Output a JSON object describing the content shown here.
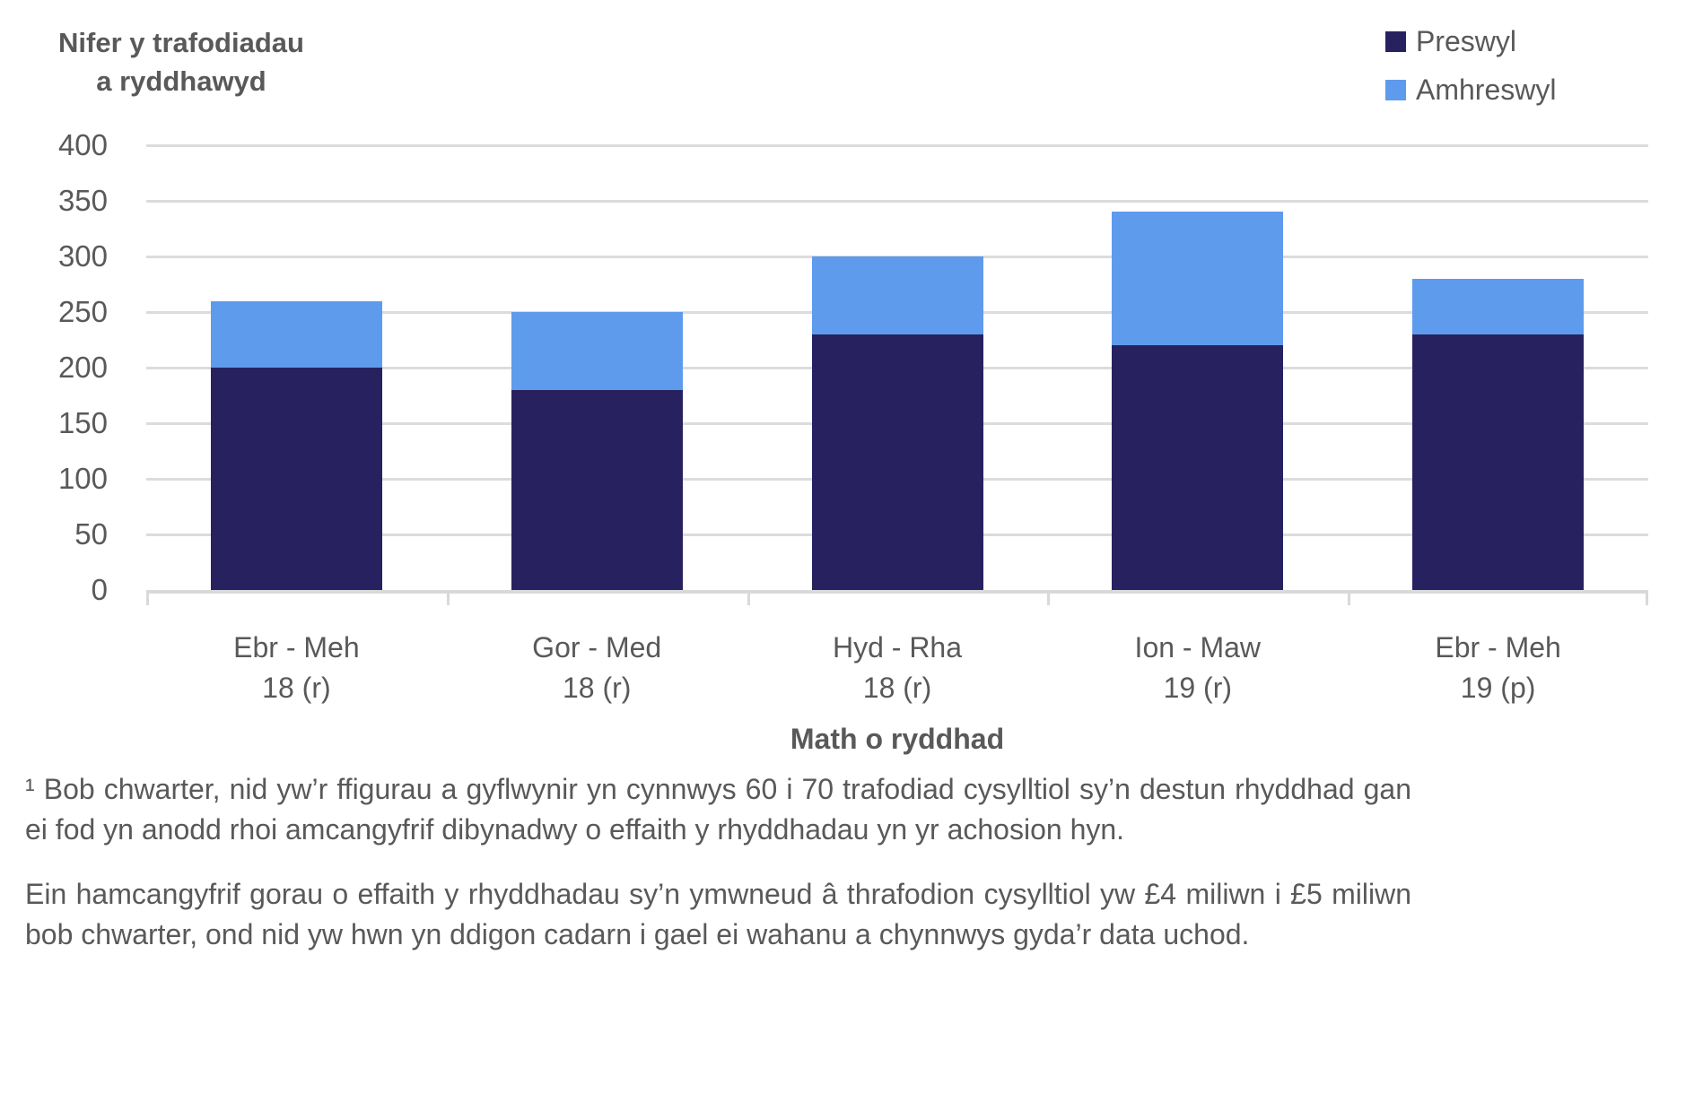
{
  "colors": {
    "preswyl": "#27225F",
    "amhreswyl": "#5E9BEC",
    "gridline": "#DCDCDC",
    "axis": "#D9D9D9",
    "text": "#595959"
  },
  "chart_data": {
    "type": "bar",
    "stacked": true,
    "y_axis_title_lines": [
      "Nifer y trafodiadau",
      "a ryddhawyd"
    ],
    "xlabel": "Math o ryddhad",
    "ylabel": "Nifer y trafodiadau a ryddhawyd",
    "ylim": [
      0,
      400
    ],
    "ytick_step": 50,
    "grid": true,
    "legend_position": "top-right",
    "categories": [
      {
        "line1": "Ebr - Meh",
        "line2": "18 (r)"
      },
      {
        "line1": "Gor - Med",
        "line2": "18 (r)"
      },
      {
        "line1": "Hyd - Rha",
        "line2": "18 (r)"
      },
      {
        "line1": "Ion - Maw",
        "line2": "19 (r)"
      },
      {
        "line1": "Ebr - Meh",
        "line2": "19 (p)"
      }
    ],
    "series": [
      {
        "name": "Preswyl",
        "color": "#27225F",
        "values": [
          200,
          180,
          230,
          220,
          230
        ]
      },
      {
        "name": "Amhreswyl",
        "color": "#5E9BEC",
        "values": [
          60,
          70,
          70,
          120,
          50
        ]
      }
    ]
  },
  "footnotes": [
    "¹ Bob chwarter, nid yw’r ffigurau a gyflwynir yn cynnwys 60 i 70 trafodiad cysylltiol sy’n destun rhyddhad gan ei fod yn anodd rhoi amcangyfrif dibynadwy o effaith y rhyddhadau yn yr achosion hyn.",
    "Ein hamcangyfrif gorau o effaith y rhyddhadau sy’n ymwneud â thrafodion cysylltiol yw £4 miliwn i £5 miliwn bob chwarter, ond nid yw hwn yn ddigon cadarn i gael ei wahanu a chynnwys gyda’r data uchod."
  ]
}
